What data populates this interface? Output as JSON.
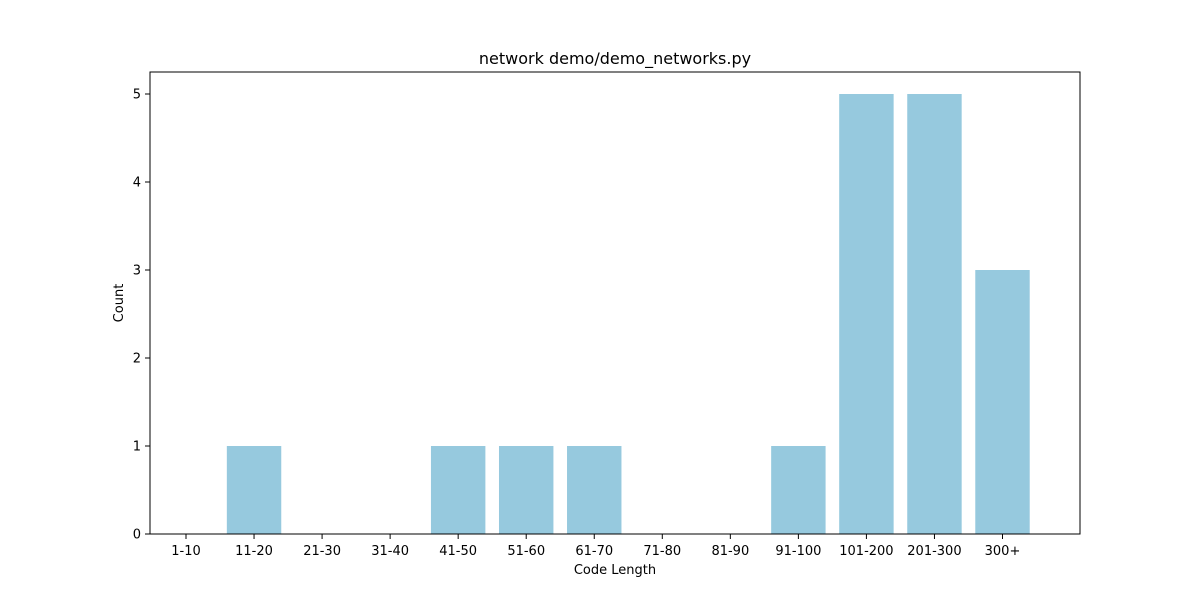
{
  "chart_data": {
    "type": "bar",
    "title": "network demo/demo_networks.py",
    "xlabel": "Code Length",
    "ylabel": "Count",
    "categories": [
      "1-10",
      "11-20",
      "21-30",
      "31-40",
      "41-50",
      "51-60",
      "61-70",
      "71-80",
      "81-90",
      "91-100",
      "101-200",
      "201-300",
      "300+"
    ],
    "values": [
      0,
      1,
      0,
      0,
      1,
      1,
      1,
      0,
      0,
      1,
      5,
      5,
      3
    ],
    "ylim": [
      0,
      5.25
    ],
    "yticks": [
      0,
      1,
      2,
      3,
      4,
      5
    ],
    "grid": false,
    "bar_color": "#96c9de"
  }
}
